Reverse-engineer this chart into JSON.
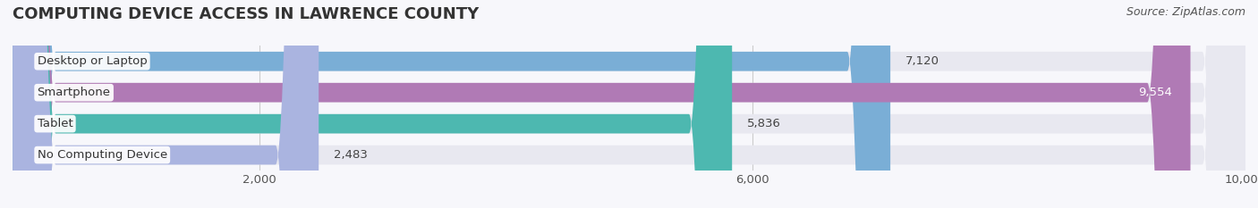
{
  "title": "COMPUTING DEVICE ACCESS IN LAWRENCE COUNTY",
  "source": "Source: ZipAtlas.com",
  "categories": [
    "Desktop or Laptop",
    "Smartphone",
    "Tablet",
    "No Computing Device"
  ],
  "values": [
    7120,
    9554,
    5836,
    2483
  ],
  "bar_colors": [
    "#7aaed6",
    "#b07ab5",
    "#4db8b0",
    "#aab4e0"
  ],
  "bar_bg_color": "#e8e8f0",
  "background_color": "#f7f7fb",
  "xlim": [
    0,
    10000
  ],
  "title_fontsize": 13,
  "label_fontsize": 9.5,
  "value_fontsize": 9.5,
  "source_fontsize": 9,
  "bar_height": 0.62,
  "title_color": "#333333",
  "text_color": "#555555",
  "dark_text_color": "#444444",
  "grid_color": "#cccccc",
  "label_bg_color": "#ffffff",
  "label_text_color": "#333333"
}
